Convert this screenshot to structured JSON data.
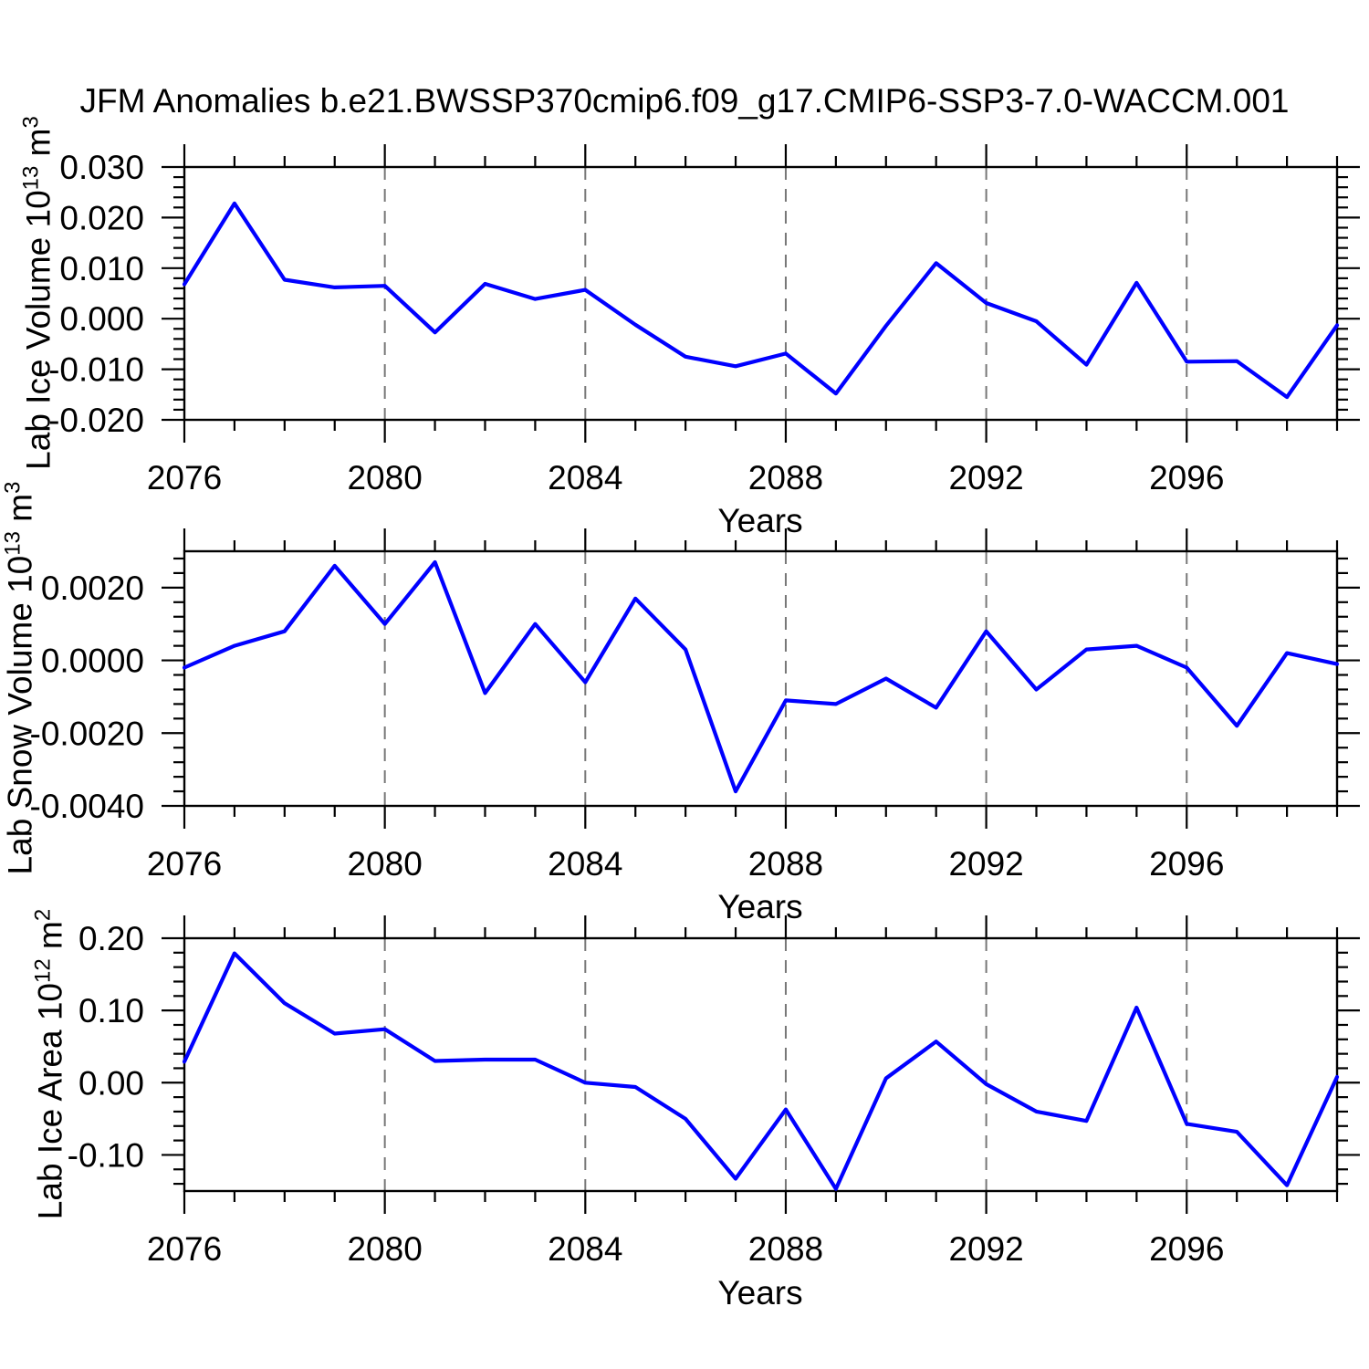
{
  "title": "JFM Anomalies b.e21.BWSSP370cmip6.f09_g17.CMIP6-SSP3-7.0-WACCM.001",
  "colors": {
    "line": "#0000ff",
    "frame": "#000000",
    "grid": "#777777",
    "background": "#ffffff",
    "text": "#000000"
  },
  "chart_data": [
    {
      "type": "line",
      "name": "lab-ice-volume",
      "ylabel": {
        "base": "Lab Ice Volume 10",
        "exp": "13",
        "unit": " m",
        "unit_exp": "3"
      },
      "xlabel": "Years",
      "xlim": [
        2076,
        2099
      ],
      "ylim": [
        -0.02,
        0.03
      ],
      "x": [
        2076,
        2077,
        2078,
        2079,
        2080,
        2081,
        2082,
        2083,
        2084,
        2085,
        2086,
        2087,
        2088,
        2089,
        2090,
        2091,
        2092,
        2093,
        2094,
        2095,
        2096,
        2097,
        2098,
        2099
      ],
      "values": [
        0.0068,
        0.0228,
        0.0077,
        0.0062,
        0.0065,
        -0.0027,
        0.0069,
        0.0039,
        0.0057,
        -0.0012,
        -0.0075,
        -0.0094,
        -0.0069,
        -0.0148,
        -0.0014,
        0.011,
        0.0031,
        -0.0005,
        -0.0091,
        0.0071,
        -0.0085,
        -0.0084,
        -0.0155,
        -0.0013
      ],
      "yticks": [
        {
          "v": 0.03,
          "label": "0.030"
        },
        {
          "v": 0.02,
          "label": "0.020"
        },
        {
          "v": 0.01,
          "label": "0.010"
        },
        {
          "v": 0.0,
          "label": "0.000"
        },
        {
          "v": -0.01,
          "label": "-0.010"
        },
        {
          "v": -0.02,
          "label": "-0.020"
        }
      ],
      "ytick_minor_step": 0.002,
      "xticks": [
        {
          "v": 2076,
          "label": "2076"
        },
        {
          "v": 2080,
          "label": "2080"
        },
        {
          "v": 2084,
          "label": "2084"
        },
        {
          "v": 2088,
          "label": "2088"
        },
        {
          "v": 2092,
          "label": "2092"
        },
        {
          "v": 2096,
          "label": "2096"
        }
      ],
      "xtick_minor_step": 1,
      "grid_x": [
        2080,
        2084,
        2088,
        2092,
        2096
      ]
    },
    {
      "type": "line",
      "name": "lab-snow-volume",
      "ylabel": {
        "base": "Lab Snow Volume 10",
        "exp": "13",
        "unit": " m",
        "unit_exp": "3"
      },
      "xlabel": "Years",
      "xlim": [
        2076,
        2099
      ],
      "ylim": [
        -0.004,
        0.003
      ],
      "x": [
        2076,
        2077,
        2078,
        2079,
        2080,
        2081,
        2082,
        2083,
        2084,
        2085,
        2086,
        2087,
        2088,
        2089,
        2090,
        2091,
        2092,
        2093,
        2094,
        2095,
        2096,
        2097,
        2098,
        2099
      ],
      "values": [
        -0.0002,
        0.0004,
        0.0008,
        0.0026,
        0.001,
        0.0027,
        -0.0009,
        0.001,
        -0.0006,
        0.0017,
        0.0003,
        -0.0036,
        -0.0011,
        -0.0012,
        -0.0005,
        -0.0013,
        0.0008,
        -0.0008,
        0.0003,
        0.0004,
        -0.0002,
        -0.0018,
        0.0002,
        -0.0001
      ],
      "yticks": [
        {
          "v": 0.002,
          "label": "0.0020"
        },
        {
          "v": 0.0,
          "label": "0.0000"
        },
        {
          "v": -0.002,
          "label": "-0.0020"
        },
        {
          "v": -0.004,
          "label": "-0.0040"
        }
      ],
      "ytick_minor_step": 0.0004,
      "xticks": [
        {
          "v": 2076,
          "label": "2076"
        },
        {
          "v": 2080,
          "label": "2080"
        },
        {
          "v": 2084,
          "label": "2084"
        },
        {
          "v": 2088,
          "label": "2088"
        },
        {
          "v": 2092,
          "label": "2092"
        },
        {
          "v": 2096,
          "label": "2096"
        }
      ],
      "xtick_minor_step": 1,
      "grid_x": [
        2080,
        2084,
        2088,
        2092,
        2096
      ]
    },
    {
      "type": "line",
      "name": "lab-ice-area",
      "ylabel": {
        "base": "Lab Ice Area 10",
        "exp": "12",
        "unit": " m",
        "unit_exp": "2"
      },
      "xlabel": "Years",
      "xlim": [
        2076,
        2099
      ],
      "ylim": [
        -0.15,
        0.2
      ],
      "x": [
        2076,
        2077,
        2078,
        2079,
        2080,
        2081,
        2082,
        2083,
        2084,
        2085,
        2086,
        2087,
        2088,
        2089,
        2090,
        2091,
        2092,
        2093,
        2094,
        2095,
        2096,
        2097,
        2098,
        2099
      ],
      "values": [
        0.029,
        0.179,
        0.11,
        0.068,
        0.074,
        0.03,
        0.032,
        0.032,
        0.0,
        -0.006,
        -0.05,
        -0.133,
        -0.037,
        -0.147,
        0.006,
        0.057,
        -0.002,
        -0.04,
        -0.053,
        0.104,
        -0.057,
        -0.068,
        -0.142,
        0.008
      ],
      "yticks": [
        {
          "v": 0.2,
          "label": "0.20"
        },
        {
          "v": 0.1,
          "label": "0.10"
        },
        {
          "v": 0.0,
          "label": "0.00"
        },
        {
          "v": -0.1,
          "label": "-0.10"
        }
      ],
      "ytick_minor_step": 0.02,
      "xticks": [
        {
          "v": 2076,
          "label": "2076"
        },
        {
          "v": 2080,
          "label": "2080"
        },
        {
          "v": 2084,
          "label": "2084"
        },
        {
          "v": 2088,
          "label": "2088"
        },
        {
          "v": 2092,
          "label": "2092"
        },
        {
          "v": 2096,
          "label": "2096"
        }
      ],
      "xtick_minor_step": 1,
      "grid_x": [
        2080,
        2084,
        2088,
        2092,
        2096
      ]
    }
  ]
}
